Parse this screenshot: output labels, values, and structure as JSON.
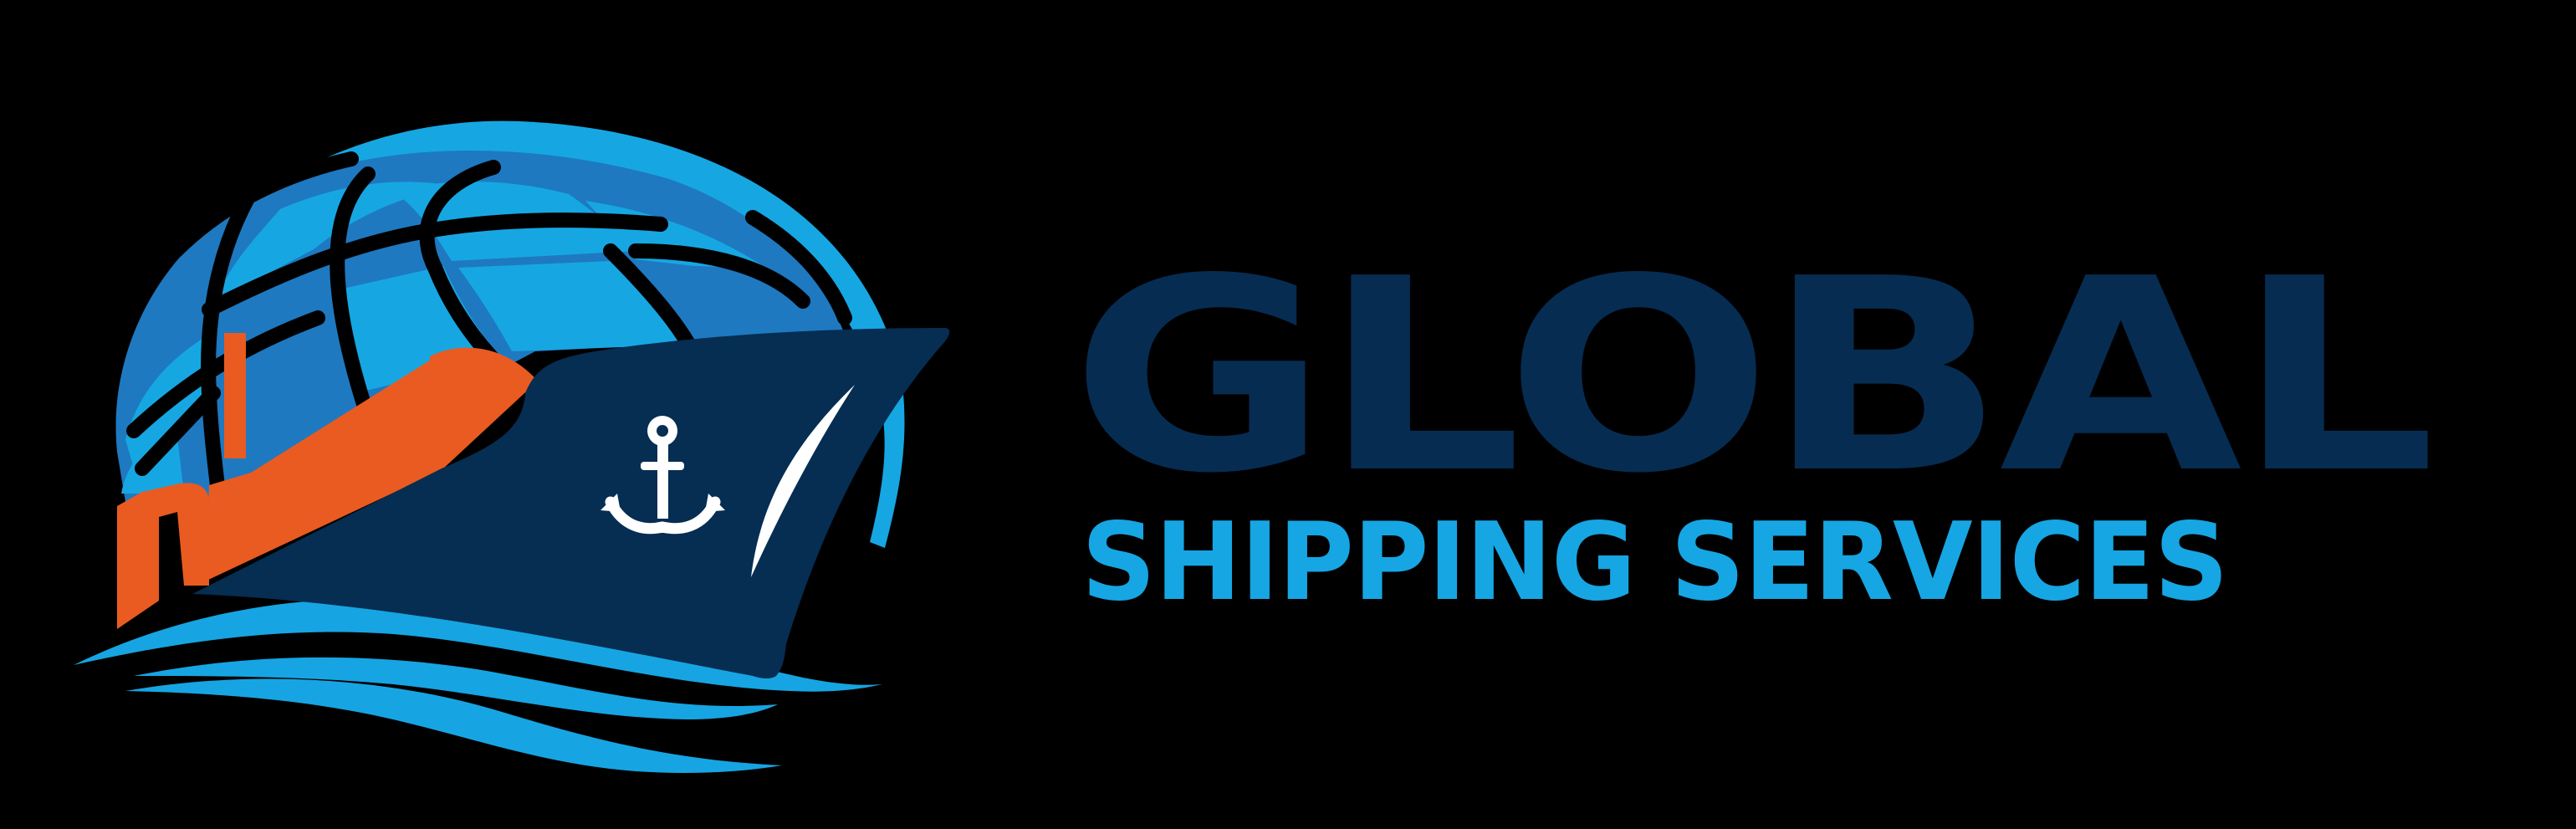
{
  "brand": {
    "name_primary": "GLOBAL",
    "name_secondary": "SHIPPING SERVICES"
  },
  "colors": {
    "background": "#000000",
    "primary_text": "#062c51",
    "secondary_text": "#16a6e3",
    "globe_light": "#16a7e3",
    "globe_dark": "#1e79c0",
    "hull": "#062d52",
    "cabin": "#e95b20",
    "waves": "#16a5e2",
    "anchor": "#ffffff"
  },
  "emblem": {
    "icons": [
      "globe-icon",
      "ship-icon",
      "anchor-icon",
      "waves-icon"
    ]
  }
}
